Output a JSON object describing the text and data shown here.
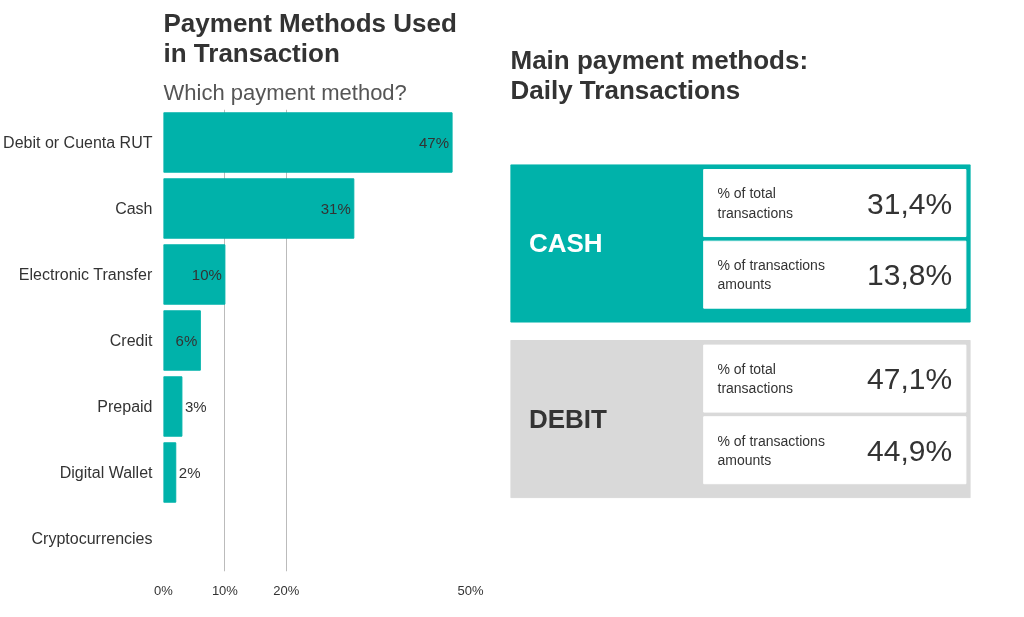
{
  "chart_data": [
    {
      "type": "bar",
      "orientation": "horizontal",
      "title": "Payment Methods Used\nin Transaction",
      "subtitle": "Which payment method?",
      "categories": [
        "Debit or Cuenta RUT",
        "Cash",
        "Electronic Transfer",
        "Credit",
        "Prepaid",
        "Digital Wallet",
        "Cryptocurrencies"
      ],
      "values": [
        47,
        31,
        10,
        6,
        3,
        2,
        null
      ],
      "value_labels": [
        "47%",
        "31%",
        "10%",
        "6%",
        "3%",
        "2%",
        null
      ],
      "color": "#00b2aa",
      "xlim": [
        0,
        50
      ],
      "xticks": [
        {
          "value": 0,
          "label": "0%"
        },
        {
          "value": 10,
          "label": "10%"
        },
        {
          "value": 20,
          "label": "20%"
        },
        {
          "value": 50,
          "label": "50%"
        }
      ],
      "grid": "x"
    },
    {
      "type": "other",
      "title": "Main payment methods:\nDaily Transactions",
      "categories": [
        "CASH",
        "DEBIT"
      ],
      "colors": [
        "#00b2aa",
        "#d9d9d9"
      ],
      "series": [
        {
          "name": "% of total\ntransactions",
          "values": [
            31.4,
            47.1
          ],
          "value_labels": [
            "31,4%",
            "47,1%"
          ]
        },
        {
          "name": "% of transactions\namounts",
          "values": [
            13.8,
            44.9
          ],
          "value_labels": [
            "13,8%",
            "44,9%"
          ]
        }
      ]
    }
  ]
}
